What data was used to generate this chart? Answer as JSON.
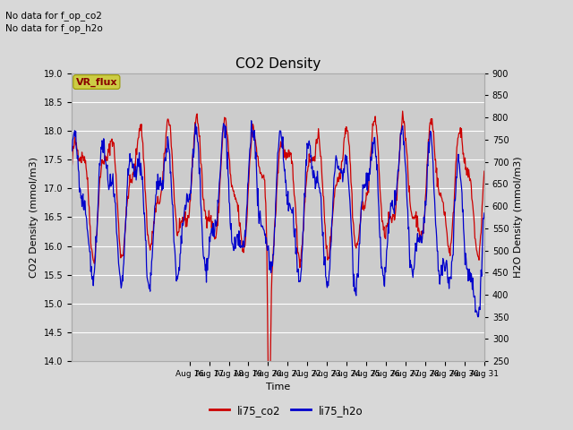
{
  "title": "CO2 Density",
  "xlabel": "Time",
  "ylabel_left": "CO2 Density (mmol/m3)",
  "ylabel_right": "H2O Density (mmol/m3)",
  "text_no_data_1": "No data for f_op_co2",
  "text_no_data_2": "No data for f_op_h2o",
  "vr_flux_label": "VR_flux",
  "legend_co2": "li75_co2",
  "legend_h2o": "li75_h2o",
  "co2_color": "#cc0000",
  "h2o_color": "#0000cc",
  "ylim_left": [
    14.0,
    19.0
  ],
  "ylim_right": [
    250,
    900
  ],
  "fig_bg_color": "#d8d8d8",
  "ax_bg_color": "#cccccc",
  "grid_color": "#ffffff",
  "vr_flux_bg": "#cccc44",
  "vr_flux_fg": "#880000",
  "num_points": 800
}
